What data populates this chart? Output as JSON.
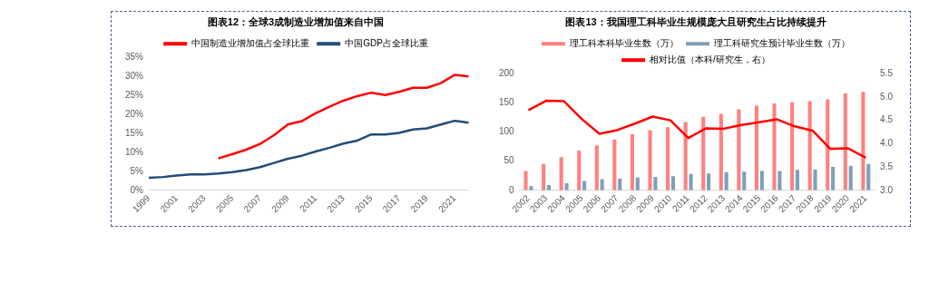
{
  "chart_data": [
    {
      "type": "line",
      "title": "图表12：全球3成制造业增加值来自中国",
      "categories": [
        "1999",
        null,
        "2001",
        null,
        "2003",
        null,
        "2005",
        null,
        "2007",
        null,
        "2009",
        null,
        "2011",
        null,
        "2013",
        null,
        "2015",
        null,
        "2017",
        null,
        "2019",
        null,
        "2021",
        null
      ],
      "series": [
        {
          "name": "中国制造业增加值占全球比重",
          "color": "#ff0000",
          "values": [
            null,
            null,
            null,
            null,
            null,
            8.4,
            9.5,
            10.7,
            12.2,
            14.5,
            17.3,
            18.2,
            20.3,
            22.0,
            23.6,
            24.8,
            25.7,
            25.1,
            25.9,
            27.0,
            27.0,
            28.2,
            30.4,
            30.0
          ]
        },
        {
          "name": "中国GDP占全球比重",
          "color": "#1f4e79",
          "values": [
            3.3,
            3.5,
            3.9,
            4.2,
            4.2,
            4.4,
            4.8,
            5.3,
            6.1,
            7.2,
            8.3,
            9.1,
            10.2,
            11.2,
            12.3,
            13.1,
            14.7,
            14.7,
            15.1,
            16.0,
            16.3,
            17.3,
            18.3,
            17.8
          ]
        }
      ],
      "ylim": [
        0,
        35
      ],
      "yticks": [
        {
          "value": 0,
          "label": "0%"
        },
        {
          "value": 5,
          "label": "5%"
        },
        {
          "value": 10,
          "label": "10%"
        },
        {
          "value": 15,
          "label": "15%"
        },
        {
          "value": 20,
          "label": "20%"
        },
        {
          "value": 25,
          "label": "25%"
        },
        {
          "value": 30,
          "label": "30%"
        },
        {
          "value": 35,
          "label": "35%"
        }
      ],
      "grid": false,
      "legend": "top",
      "marker": "none",
      "line_style": "solid"
    },
    {
      "type": "bar",
      "title": "图表13：我国理工科毕业生规模庞大且研究生占比持续提升",
      "categories": [
        "2002",
        "2003",
        "2004",
        "2005",
        "2006",
        "2007",
        "2008",
        "2009",
        "2010",
        "2011",
        "2012",
        "2013",
        "2014",
        "2015",
        "2016",
        "2017",
        "2018",
        "2019",
        "2020",
        "2021"
      ],
      "series": [
        {
          "name": "理工科本科毕业生数（万）",
          "color": "#ff8080",
          "values": [
            33,
            45,
            57,
            68,
            77,
            87,
            96,
            103,
            108,
            117,
            126,
            131,
            139,
            145,
            149,
            151,
            153,
            156,
            166,
            169
          ]
        },
        {
          "name": "理工科研究生预计毕业生数（万）",
          "color": "#7f9fb8",
          "values": [
            7,
            9,
            12,
            16,
            19,
            20,
            22,
            23,
            24,
            28,
            29,
            31,
            32,
            33,
            33,
            35,
            36,
            40,
            42,
            45
          ]
        },
        {
          "name": "相对比值（本科/研究生，右）",
          "type": "line",
          "axis": "y2",
          "color": "#ff0000",
          "values": [
            4.72,
            4.92,
            4.91,
            4.53,
            4.21,
            4.29,
            4.43,
            4.58,
            4.5,
            4.12,
            4.33,
            4.32,
            4.4,
            4.46,
            4.52,
            4.37,
            4.28,
            3.89,
            3.9,
            3.7
          ]
        }
      ],
      "ylim": [
        0,
        200
      ],
      "yticks": [
        0,
        50,
        100,
        150,
        200
      ],
      "y2lim": [
        3.0,
        5.5
      ],
      "y2ticks": [
        {
          "value": 3,
          "label": "3.0"
        },
        {
          "value": 3.5,
          "label": "3.5"
        },
        {
          "value": 4,
          "label": "4.0"
        },
        {
          "value": 4.5,
          "label": "4.5"
        },
        {
          "value": 5,
          "label": "5.0"
        },
        {
          "value": 5.5,
          "label": "5.5"
        }
      ],
      "grid": false,
      "legend": "top",
      "marker": "none",
      "line_style": "solid"
    }
  ]
}
